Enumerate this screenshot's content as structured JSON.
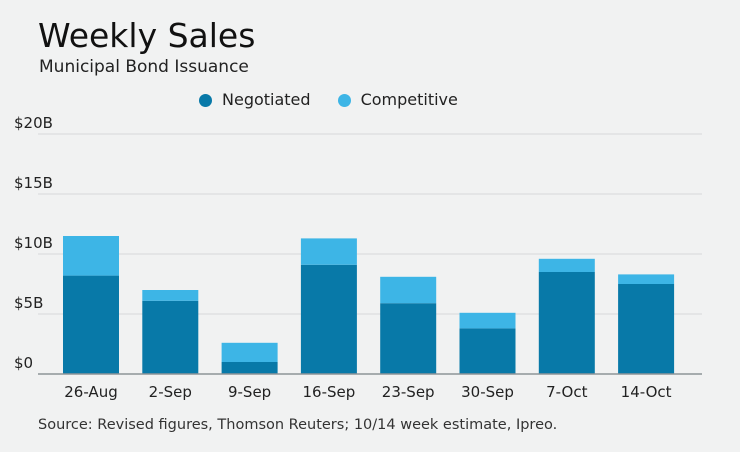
{
  "title": "Weekly Sales",
  "subtitle": "Municipal Bond Issuance",
  "source": "Source: Revised figures, Thomson Reuters; 10/14 week estimate, Ipreo.",
  "colors": {
    "negotiated": "#0879a8",
    "competitive": "#3db5e6",
    "grid": "#d6d8da",
    "axis": "#8e9498"
  },
  "chart_data": {
    "type": "bar",
    "stacked": true,
    "categories": [
      "26-Aug",
      "2-Sep",
      "9-Sep",
      "16-Sep",
      "23-Sep",
      "30-Sep",
      "7-Oct",
      "14-Oct"
    ],
    "series": [
      {
        "name": "Negotiated",
        "color": "#0879a8",
        "values": [
          8.2,
          6.1,
          1.0,
          9.1,
          5.9,
          3.8,
          8.5,
          7.5
        ]
      },
      {
        "name": "Competitive",
        "color": "#3db5e6",
        "values": [
          3.3,
          0.9,
          1.6,
          2.2,
          2.2,
          1.3,
          1.1,
          0.8
        ]
      }
    ],
    "ylim": [
      0,
      20
    ],
    "yticks": [
      0,
      5,
      10,
      15,
      20
    ],
    "ytick_labels": [
      "$0",
      "$5B",
      "$10B",
      "$15B",
      "$20B"
    ],
    "grid": true,
    "legend": "top-center",
    "xlabel": "",
    "ylabel": ""
  }
}
